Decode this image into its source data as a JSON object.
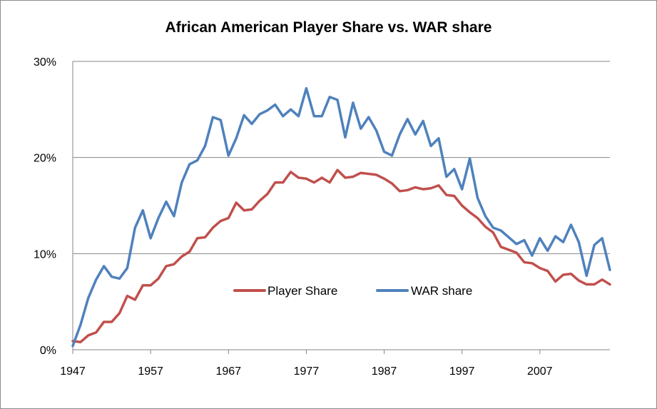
{
  "chart_data": {
    "type": "line",
    "title": "African American Player Share vs. WAR share",
    "xlabel": "",
    "ylabel": "",
    "xlim": [
      1947,
      2016
    ],
    "ylim": [
      0,
      30
    ],
    "x_ticks": [
      "1947",
      "1957",
      "1967",
      "1977",
      "1987",
      "1997",
      "2007"
    ],
    "x_tick_values": [
      1947,
      1957,
      1967,
      1977,
      1987,
      1997,
      2007
    ],
    "y_ticks": [
      "0%",
      "10%",
      "20%",
      "30%"
    ],
    "y_tick_values": [
      0,
      10,
      20,
      30
    ],
    "grid": "horizontal",
    "legend_position": "inside-center",
    "x": [
      1947,
      1948,
      1949,
      1950,
      1951,
      1952,
      1953,
      1954,
      1955,
      1956,
      1957,
      1958,
      1959,
      1960,
      1961,
      1962,
      1963,
      1964,
      1965,
      1966,
      1967,
      1968,
      1969,
      1970,
      1971,
      1972,
      1973,
      1974,
      1975,
      1976,
      1977,
      1978,
      1979,
      1980,
      1981,
      1982,
      1983,
      1984,
      1985,
      1986,
      1987,
      1988,
      1989,
      1990,
      1991,
      1992,
      1993,
      1994,
      1995,
      1996,
      1997,
      1998,
      1999,
      2000,
      2001,
      2002,
      2003,
      2004,
      2005,
      2006,
      2007,
      2008,
      2009,
      2010,
      2011,
      2012,
      2013,
      2014,
      2015,
      2016
    ],
    "series": [
      {
        "name": "Player Share",
        "color": "#c0504d",
        "values": [
          0.9,
          0.8,
          1.5,
          1.8,
          2.9,
          2.9,
          3.8,
          5.6,
          5.2,
          6.7,
          6.7,
          7.4,
          8.7,
          8.9,
          9.7,
          10.2,
          11.6,
          11.7,
          12.7,
          13.4,
          13.7,
          15.3,
          14.5,
          14.6,
          15.5,
          16.2,
          17.4,
          17.4,
          18.5,
          17.9,
          17.8,
          17.4,
          17.9,
          17.4,
          18.7,
          17.9,
          18.0,
          18.4,
          18.3,
          18.2,
          17.8,
          17.3,
          16.5,
          16.6,
          16.9,
          16.7,
          16.8,
          17.1,
          16.1,
          16.0,
          15.0,
          14.3,
          13.7,
          12.8,
          12.2,
          10.7,
          10.4,
          10.1,
          9.1,
          9.0,
          8.5,
          8.2,
          7.1,
          7.8,
          7.9,
          7.2,
          6.8,
          6.8,
          7.3,
          6.8
        ]
      },
      {
        "name": "WAR share",
        "color": "#4f81bd",
        "values": [
          0.4,
          2.6,
          5.4,
          7.3,
          8.7,
          7.6,
          7.4,
          8.5,
          12.7,
          14.5,
          11.6,
          13.7,
          15.4,
          13.9,
          17.4,
          19.3,
          19.7,
          21.2,
          24.2,
          23.9,
          20.2,
          22.0,
          24.4,
          23.5,
          24.5,
          24.9,
          25.5,
          24.3,
          25.0,
          24.3,
          27.2,
          24.3,
          24.3,
          26.3,
          26.0,
          22.1,
          25.7,
          23.0,
          24.2,
          22.8,
          20.6,
          20.2,
          22.4,
          24.0,
          22.4,
          23.8,
          21.2,
          22.0,
          18.0,
          18.8,
          16.7,
          19.9,
          15.8,
          13.9,
          12.7,
          12.4,
          11.7,
          11.0,
          11.4,
          9.8,
          11.6,
          10.3,
          11.8,
          11.2,
          13.0,
          11.2,
          7.7,
          10.9,
          11.6,
          8.3
        ]
      }
    ]
  }
}
